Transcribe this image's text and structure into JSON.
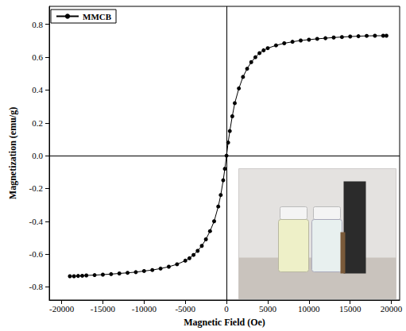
{
  "chart_data": {
    "type": "line",
    "x_label": "Magnetic Field (Oe)",
    "y_label": "Magnetization (emu/g)",
    "legend": "upper left",
    "grid": false,
    "xlim": [
      -21500,
      21000
    ],
    "xticks": [
      -20000,
      -15000,
      -10000,
      -5000,
      0,
      5000,
      10000,
      15000,
      20000
    ],
    "ylim": [
      -0.88,
      0.91
    ],
    "yticks": [
      -0.8,
      -0.6,
      -0.4,
      -0.2,
      {
        "value": 0,
        "label": "0.0"
      },
      0.2,
      0.4,
      0.6,
      0.8
    ],
    "x": [
      -19000,
      -18500,
      -18000,
      -17500,
      -17000,
      -16000,
      -15000,
      -14000,
      -13000,
      -12000,
      -11000,
      -10000,
      -9000,
      -8000,
      -7000,
      -6000,
      -5000,
      -4500,
      -4000,
      -3500,
      -3000,
      -2500,
      -2000,
      -1500,
      -1000,
      -700,
      -400,
      -200,
      0,
      200,
      400,
      700,
      1000,
      1500,
      2000,
      2500,
      3000,
      3500,
      4000,
      4500,
      5000,
      6000,
      7000,
      8000,
      9000,
      10000,
      11000,
      12000,
      13000,
      14000,
      15000,
      16000,
      17000,
      18000,
      19000,
      19400
    ],
    "series": [
      {
        "name": "MMCB",
        "color": "#000000",
        "marker": "circle",
        "line_style": "solid",
        "values": [
          -0.735,
          -0.735,
          -0.733,
          -0.732,
          -0.73,
          -0.728,
          -0.725,
          -0.722,
          -0.718,
          -0.714,
          -0.71,
          -0.703,
          -0.697,
          -0.688,
          -0.677,
          -0.662,
          -0.64,
          -0.625,
          -0.605,
          -0.58,
          -0.55,
          -0.51,
          -0.46,
          -0.4,
          -0.31,
          -0.24,
          -0.15,
          -0.08,
          0,
          0.08,
          0.15,
          0.24,
          0.32,
          0.41,
          0.48,
          0.53,
          0.57,
          0.6,
          0.625,
          0.642,
          0.655,
          0.672,
          0.685,
          0.694,
          0.702,
          0.707,
          0.712,
          0.716,
          0.72,
          0.723,
          0.726,
          0.728,
          0.73,
          0.731,
          0.731,
          0.731
        ]
      }
    ]
  }
}
